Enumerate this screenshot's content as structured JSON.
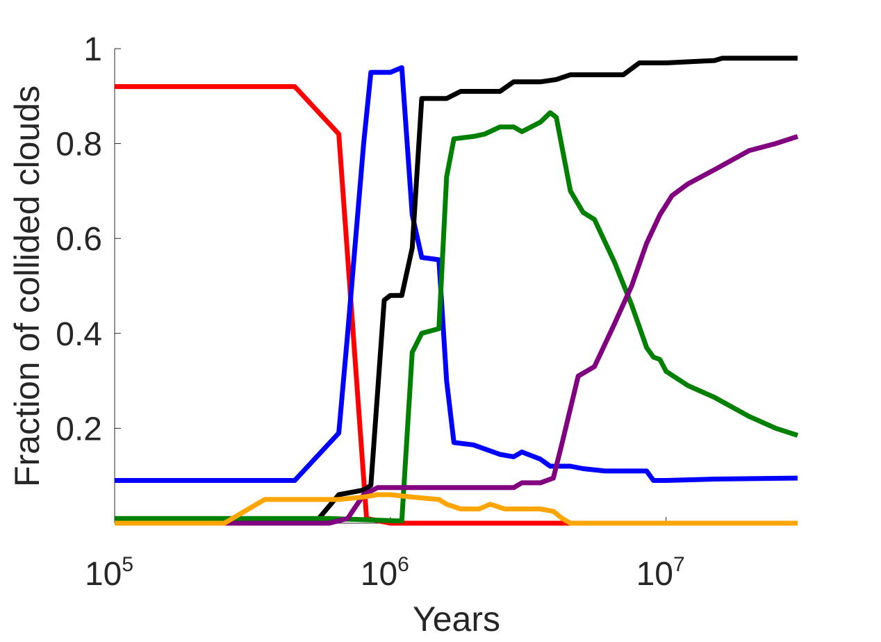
{
  "chart_data": {
    "type": "line",
    "xlabel": "Years",
    "ylabel": "Fraction of collided clouds",
    "xscale": "log",
    "xlim": [
      100000,
      30000000
    ],
    "ylim": [
      0,
      1
    ],
    "x_ticks": [
      {
        "value": 100000,
        "base": "10",
        "exp": "5"
      },
      {
        "value": 1000000,
        "base": "10",
        "exp": "6"
      },
      {
        "value": 10000000,
        "base": "10",
        "exp": "7"
      }
    ],
    "y_ticks": [
      {
        "value": 0.2,
        "label": "0.2"
      },
      {
        "value": 0.4,
        "label": "0.4"
      },
      {
        "value": 0.6,
        "label": "0.6"
      },
      {
        "value": 0.8,
        "label": "0.8"
      },
      {
        "value": 1,
        "label": "1"
      }
    ],
    "grid": false,
    "legend": "none",
    "series": [
      {
        "color": "#ff0000",
        "points": [
          [
            100000,
            0.92
          ],
          [
            450000,
            0.92
          ],
          [
            650000,
            0.82
          ],
          [
            820000,
            0.01
          ],
          [
            1000000,
            0.0
          ],
          [
            30000000,
            0.0
          ]
        ]
      },
      {
        "color": "#0000ff",
        "points": [
          [
            100000,
            0.09
          ],
          [
            450000,
            0.09
          ],
          [
            650000,
            0.19
          ],
          [
            700000,
            0.4
          ],
          [
            800000,
            0.8
          ],
          [
            850000,
            0.95
          ],
          [
            1000000,
            0.95
          ],
          [
            1100000,
            0.96
          ],
          [
            1200000,
            0.65
          ],
          [
            1300000,
            0.56
          ],
          [
            1500000,
            0.555
          ],
          [
            1600000,
            0.3
          ],
          [
            1700000,
            0.17
          ],
          [
            2000000,
            0.165
          ],
          [
            2500000,
            0.145
          ],
          [
            2800000,
            0.14
          ],
          [
            3000000,
            0.15
          ],
          [
            3500000,
            0.135
          ],
          [
            3800000,
            0.12
          ],
          [
            4500000,
            0.12
          ],
          [
            5000000,
            0.115
          ],
          [
            6000000,
            0.11
          ],
          [
            7000000,
            0.11
          ],
          [
            8500000,
            0.11
          ],
          [
            9000000,
            0.09
          ],
          [
            10000000,
            0.09
          ],
          [
            15000000,
            0.093
          ],
          [
            30000000,
            0.095
          ]
        ]
      },
      {
        "color": "#000000",
        "points": [
          [
            100000,
            0.0
          ],
          [
            450000,
            0.0
          ],
          [
            550000,
            0.01
          ],
          [
            650000,
            0.06
          ],
          [
            800000,
            0.07
          ],
          [
            850000,
            0.08
          ],
          [
            950000,
            0.47
          ],
          [
            1000000,
            0.48
          ],
          [
            1100000,
            0.48
          ],
          [
            1200000,
            0.58
          ],
          [
            1300000,
            0.895
          ],
          [
            1600000,
            0.895
          ],
          [
            1800000,
            0.91
          ],
          [
            2500000,
            0.91
          ],
          [
            2800000,
            0.93
          ],
          [
            3500000,
            0.93
          ],
          [
            4000000,
            0.935
          ],
          [
            4500000,
            0.945
          ],
          [
            5000000,
            0.945
          ],
          [
            7000000,
            0.945
          ],
          [
            8000000,
            0.97
          ],
          [
            10000000,
            0.97
          ],
          [
            15000000,
            0.975
          ],
          [
            16000000,
            0.98
          ],
          [
            30000000,
            0.98
          ]
        ]
      },
      {
        "color": "#008000",
        "points": [
          [
            100000,
            0.01
          ],
          [
            450000,
            0.01
          ],
          [
            600000,
            0.01
          ],
          [
            1050000,
            0.005
          ],
          [
            1100000,
            0.005
          ],
          [
            1200000,
            0.36
          ],
          [
            1300000,
            0.4
          ],
          [
            1500000,
            0.41
          ],
          [
            1600000,
            0.73
          ],
          [
            1700000,
            0.81
          ],
          [
            2000000,
            0.815
          ],
          [
            2200000,
            0.82
          ],
          [
            2500000,
            0.835
          ],
          [
            2800000,
            0.835
          ],
          [
            3000000,
            0.825
          ],
          [
            3500000,
            0.845
          ],
          [
            3800000,
            0.865
          ],
          [
            4000000,
            0.855
          ],
          [
            4500000,
            0.7
          ],
          [
            5000000,
            0.655
          ],
          [
            5500000,
            0.64
          ],
          [
            6500000,
            0.55
          ],
          [
            7500000,
            0.46
          ],
          [
            8500000,
            0.37
          ],
          [
            9000000,
            0.35
          ],
          [
            9500000,
            0.345
          ],
          [
            10000000,
            0.32
          ],
          [
            12000000,
            0.29
          ],
          [
            15000000,
            0.265
          ],
          [
            20000000,
            0.225
          ],
          [
            25000000,
            0.2
          ],
          [
            30000000,
            0.185
          ]
        ]
      },
      {
        "color": "#800080",
        "points": [
          [
            100000,
            0.0
          ],
          [
            450000,
            0.0
          ],
          [
            600000,
            0.0
          ],
          [
            700000,
            0.01
          ],
          [
            800000,
            0.06
          ],
          [
            900000,
            0.075
          ],
          [
            1000000,
            0.075
          ],
          [
            1500000,
            0.075
          ],
          [
            2000000,
            0.075
          ],
          [
            2800000,
            0.075
          ],
          [
            3000000,
            0.085
          ],
          [
            3500000,
            0.085
          ],
          [
            3900000,
            0.095
          ],
          [
            4200000,
            0.17
          ],
          [
            4800000,
            0.31
          ],
          [
            5500000,
            0.33
          ],
          [
            6500000,
            0.42
          ],
          [
            7500000,
            0.5
          ],
          [
            8500000,
            0.59
          ],
          [
            9500000,
            0.65
          ],
          [
            10500000,
            0.69
          ],
          [
            12000000,
            0.715
          ],
          [
            15000000,
            0.745
          ],
          [
            20000000,
            0.785
          ],
          [
            25000000,
            0.8
          ],
          [
            30000000,
            0.815
          ]
        ]
      },
      {
        "color": "#ffa500",
        "points": [
          [
            100000,
            0.0
          ],
          [
            250000,
            0.0
          ],
          [
            350000,
            0.05
          ],
          [
            500000,
            0.05
          ],
          [
            650000,
            0.05
          ],
          [
            800000,
            0.055
          ],
          [
            900000,
            0.06
          ],
          [
            1000000,
            0.06
          ],
          [
            1200000,
            0.055
          ],
          [
            1500000,
            0.05
          ],
          [
            1600000,
            0.04
          ],
          [
            1800000,
            0.03
          ],
          [
            2100000,
            0.03
          ],
          [
            2300000,
            0.04
          ],
          [
            2600000,
            0.03
          ],
          [
            3000000,
            0.03
          ],
          [
            3500000,
            0.03
          ],
          [
            3900000,
            0.025
          ],
          [
            4200000,
            0.01
          ],
          [
            4500000,
            0.0
          ],
          [
            30000000,
            0.0
          ]
        ]
      }
    ]
  }
}
